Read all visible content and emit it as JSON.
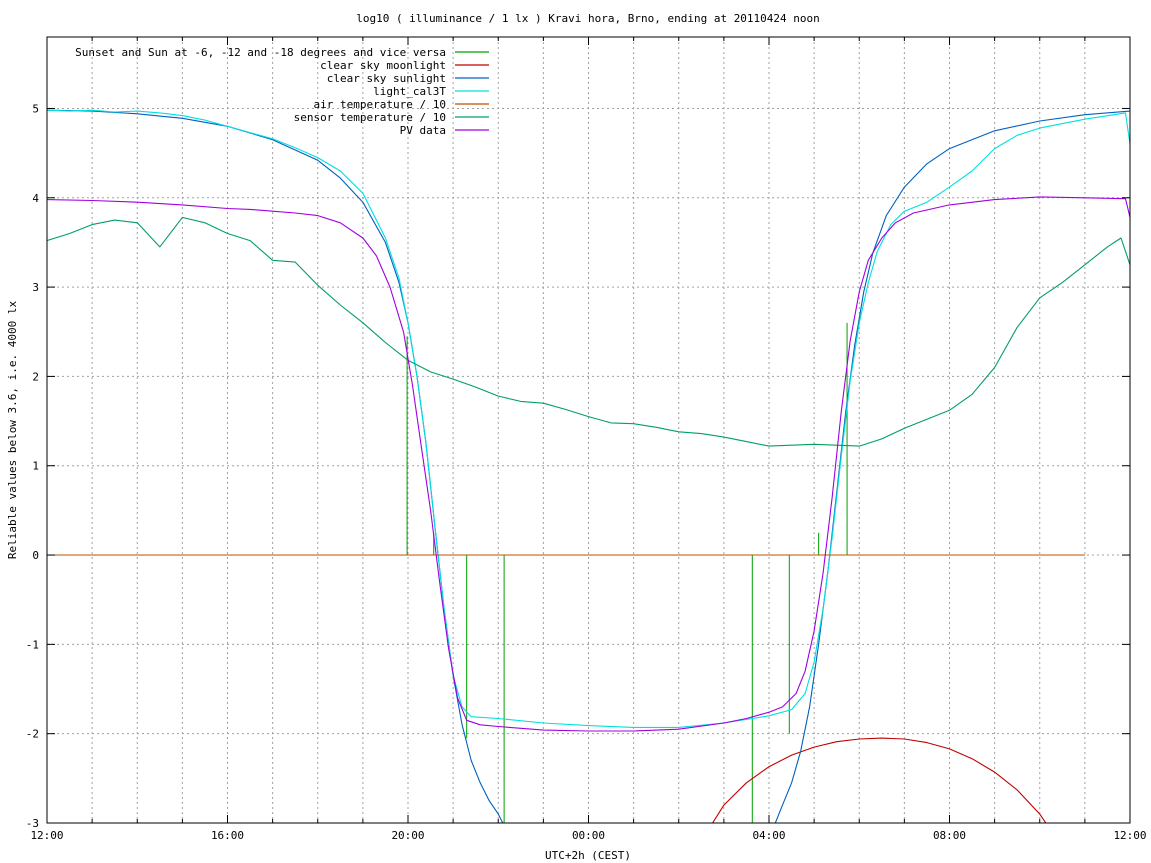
{
  "chart_data": {
    "type": "line",
    "title": "log10 ( illuminance / 1 lx ) Kravi hora, Brno, ending at 20110424 noon",
    "xlabel": "UTC+2h (CEST)",
    "ylabel": "Reliable values below 3.6, i.e. 4000 lx",
    "xlim": [
      12,
      36
    ],
    "ylim": [
      -3,
      5.8
    ],
    "x_ticks": [
      {
        "x": 12,
        "label": "12:00"
      },
      {
        "x": 16,
        "label": "16:00"
      },
      {
        "x": 20,
        "label": "20:00"
      },
      {
        "x": 24,
        "label": "00:00"
      },
      {
        "x": 28,
        "label": "04:00"
      },
      {
        "x": 32,
        "label": "08:00"
      },
      {
        "x": 36,
        "label": "12:00"
      }
    ],
    "y_ticks": [
      {
        "y": -3,
        "label": "-3"
      },
      {
        "y": -2,
        "label": "-2"
      },
      {
        "y": -1,
        "label": "-1"
      },
      {
        "y": 0,
        "label": "0"
      },
      {
        "y": 1,
        "label": "1"
      },
      {
        "y": 2,
        "label": "2"
      },
      {
        "y": 3,
        "label": "3"
      },
      {
        "y": 4,
        "label": "4"
      },
      {
        "y": 5,
        "label": "5"
      }
    ],
    "grid": true,
    "legend_position": "top-left",
    "series": [
      {
        "name": "Sunset and Sun at -6, -12 and -18 degrees and vice versa",
        "color": "#00a000",
        "kind": "impulses",
        "values": [
          {
            "x": 19.98,
            "y": 2.45
          },
          {
            "x": 20.57,
            "y": 0.25
          },
          {
            "x": 21.3,
            "y": -2.05
          },
          {
            "x": 22.13,
            "y": -3
          },
          {
            "x": 27.63,
            "y": -3
          },
          {
            "x": 28.45,
            "y": -2.0
          },
          {
            "x": 29.1,
            "y": 0.25
          },
          {
            "x": 29.73,
            "y": 2.6
          }
        ]
      },
      {
        "name": "clear sky moonlight",
        "color": "#c00000",
        "kind": "line",
        "values": [
          [
            26.5,
            -3.2
          ],
          [
            27.0,
            -2.8
          ],
          [
            27.5,
            -2.55
          ],
          [
            28.0,
            -2.37
          ],
          [
            28.5,
            -2.24
          ],
          [
            29.0,
            -2.15
          ],
          [
            29.5,
            -2.09
          ],
          [
            30.0,
            -2.06
          ],
          [
            30.5,
            -2.05
          ],
          [
            31.0,
            -2.06
          ],
          [
            31.5,
            -2.1
          ],
          [
            32.0,
            -2.17
          ],
          [
            32.5,
            -2.28
          ],
          [
            33.0,
            -2.43
          ],
          [
            33.5,
            -2.63
          ],
          [
            34.0,
            -2.9
          ],
          [
            34.2,
            -3.05
          ]
        ]
      },
      {
        "name": "clear sky sunlight",
        "color": "#0060c0",
        "kind": "line",
        "values": [
          [
            12.0,
            4.98
          ],
          [
            13.0,
            4.97
          ],
          [
            14.0,
            4.94
          ],
          [
            15.0,
            4.89
          ],
          [
            16.0,
            4.8
          ],
          [
            17.0,
            4.65
          ],
          [
            18.0,
            4.42
          ],
          [
            18.5,
            4.22
          ],
          [
            19.0,
            3.95
          ],
          [
            19.5,
            3.5
          ],
          [
            19.8,
            3.05
          ],
          [
            20.0,
            2.6
          ],
          [
            20.2,
            2.0
          ],
          [
            20.4,
            1.25
          ],
          [
            20.6,
            0.3
          ],
          [
            20.8,
            -0.6
          ],
          [
            21.0,
            -1.35
          ],
          [
            21.2,
            -1.9
          ],
          [
            21.4,
            -2.3
          ],
          [
            21.6,
            -2.55
          ],
          [
            21.8,
            -2.75
          ],
          [
            22.0,
            -2.9
          ],
          [
            22.15,
            -3.05
          ],
          [
            null,
            null
          ],
          [
            28.1,
            -3.05
          ],
          [
            28.3,
            -2.8
          ],
          [
            28.5,
            -2.55
          ],
          [
            28.7,
            -2.2
          ],
          [
            28.9,
            -1.7
          ],
          [
            29.1,
            -1.0
          ],
          [
            29.3,
            -0.2
          ],
          [
            29.5,
            0.7
          ],
          [
            29.7,
            1.6
          ],
          [
            29.9,
            2.35
          ],
          [
            30.1,
            2.95
          ],
          [
            30.3,
            3.38
          ],
          [
            30.6,
            3.8
          ],
          [
            31.0,
            4.12
          ],
          [
            31.5,
            4.38
          ],
          [
            32.0,
            4.55
          ],
          [
            33.0,
            4.75
          ],
          [
            34.0,
            4.86
          ],
          [
            35.0,
            4.93
          ],
          [
            36.0,
            4.97
          ]
        ]
      },
      {
        "name": "light_cal3T",
        "color": "#00e0e0",
        "kind": "line",
        "values": [
          [
            12.0,
            4.98
          ],
          [
            12.5,
            4.97
          ],
          [
            13.0,
            4.98
          ],
          [
            13.5,
            4.96
          ],
          [
            14.0,
            4.97
          ],
          [
            14.5,
            4.95
          ],
          [
            15.0,
            4.92
          ],
          [
            15.5,
            4.87
          ],
          [
            16.0,
            4.8
          ],
          [
            16.5,
            4.73
          ],
          [
            17.0,
            4.66
          ],
          [
            17.5,
            4.56
          ],
          [
            18.0,
            4.45
          ],
          [
            18.5,
            4.3
          ],
          [
            19.0,
            4.05
          ],
          [
            19.5,
            3.55
          ],
          [
            19.8,
            3.1
          ],
          [
            20.0,
            2.6
          ],
          [
            20.2,
            2.0
          ],
          [
            20.4,
            1.25
          ],
          [
            20.6,
            0.3
          ],
          [
            20.8,
            -0.6
          ],
          [
            21.0,
            -1.35
          ],
          [
            21.2,
            -1.7
          ],
          [
            21.4,
            -1.81
          ],
          [
            22.0,
            -1.83
          ],
          [
            23.0,
            -1.88
          ],
          [
            24.0,
            -1.91
          ],
          [
            25.0,
            -1.93
          ],
          [
            26.0,
            -1.93
          ],
          [
            27.0,
            -1.88
          ],
          [
            28.0,
            -1.8
          ],
          [
            28.5,
            -1.73
          ],
          [
            28.8,
            -1.55
          ],
          [
            29.0,
            -1.2
          ],
          [
            29.2,
            -0.6
          ],
          [
            29.4,
            0.2
          ],
          [
            29.6,
            1.1
          ],
          [
            29.8,
            1.95
          ],
          [
            30.0,
            2.6
          ],
          [
            30.2,
            3.05
          ],
          [
            30.4,
            3.4
          ],
          [
            30.7,
            3.7
          ],
          [
            31.0,
            3.85
          ],
          [
            31.5,
            3.95
          ],
          [
            32.0,
            4.12
          ],
          [
            32.5,
            4.3
          ],
          [
            33.0,
            4.55
          ],
          [
            33.5,
            4.7
          ],
          [
            34.0,
            4.78
          ],
          [
            35.0,
            4.88
          ],
          [
            35.9,
            4.95
          ],
          [
            36.0,
            4.6
          ]
        ]
      },
      {
        "name": "air temperature / 10",
        "color": "#c05000",
        "kind": "line",
        "values": [
          [
            12.0,
            0
          ],
          [
            35.0,
            0
          ]
        ]
      },
      {
        "name": "sensor temperature / 10",
        "color": "#00a060",
        "kind": "line",
        "values": [
          [
            12.0,
            3.52
          ],
          [
            12.5,
            3.6
          ],
          [
            13.0,
            3.7
          ],
          [
            13.5,
            3.75
          ],
          [
            14.0,
            3.72
          ],
          [
            14.5,
            3.45
          ],
          [
            15.0,
            3.78
          ],
          [
            15.5,
            3.72
          ],
          [
            16.0,
            3.6
          ],
          [
            16.5,
            3.52
          ],
          [
            17.0,
            3.3
          ],
          [
            17.5,
            3.28
          ],
          [
            18.0,
            3.02
          ],
          [
            18.5,
            2.8
          ],
          [
            19.0,
            2.6
          ],
          [
            19.5,
            2.38
          ],
          [
            20.0,
            2.18
          ],
          [
            20.5,
            2.05
          ],
          [
            21.0,
            1.97
          ],
          [
            21.5,
            1.88
          ],
          [
            22.0,
            1.78
          ],
          [
            22.5,
            1.72
          ],
          [
            23.0,
            1.7
          ],
          [
            23.5,
            1.63
          ],
          [
            24.0,
            1.55
          ],
          [
            24.5,
            1.48
          ],
          [
            25.0,
            1.47
          ],
          [
            25.5,
            1.43
          ],
          [
            26.0,
            1.38
          ],
          [
            26.5,
            1.36
          ],
          [
            27.0,
            1.32
          ],
          [
            27.5,
            1.27
          ],
          [
            28.0,
            1.22
          ],
          [
            28.5,
            1.23
          ],
          [
            29.0,
            1.24
          ],
          [
            29.5,
            1.23
          ],
          [
            30.0,
            1.22
          ],
          [
            30.5,
            1.3
          ],
          [
            31.0,
            1.42
          ],
          [
            31.5,
            1.52
          ],
          [
            32.0,
            1.62
          ],
          [
            32.5,
            1.8
          ],
          [
            33.0,
            2.1
          ],
          [
            33.5,
            2.55
          ],
          [
            34.0,
            2.88
          ],
          [
            34.5,
            3.05
          ],
          [
            35.0,
            3.25
          ],
          [
            35.5,
            3.45
          ],
          [
            35.8,
            3.55
          ],
          [
            36.0,
            3.25
          ]
        ]
      },
      {
        "name": "PV data",
        "color": "#a000e0",
        "kind": "line",
        "values": [
          [
            12.0,
            3.98
          ],
          [
            13.0,
            3.97
          ],
          [
            14.0,
            3.95
          ],
          [
            15.0,
            3.92
          ],
          [
            16.0,
            3.88
          ],
          [
            16.5,
            3.87
          ],
          [
            17.0,
            3.85
          ],
          [
            17.5,
            3.83
          ],
          [
            18.0,
            3.8
          ],
          [
            18.5,
            3.72
          ],
          [
            19.0,
            3.55
          ],
          [
            19.3,
            3.35
          ],
          [
            19.6,
            3.0
          ],
          [
            19.9,
            2.5
          ],
          [
            20.1,
            1.9
          ],
          [
            20.3,
            1.2
          ],
          [
            20.5,
            0.5
          ],
          [
            20.7,
            -0.3
          ],
          [
            20.9,
            -1.05
          ],
          [
            21.1,
            -1.6
          ],
          [
            21.3,
            -1.85
          ],
          [
            21.6,
            -1.9
          ],
          [
            22.0,
            -1.92
          ],
          [
            23.0,
            -1.96
          ],
          [
            24.0,
            -1.97
          ],
          [
            25.0,
            -1.97
          ],
          [
            26.0,
            -1.95
          ],
          [
            27.0,
            -1.88
          ],
          [
            27.5,
            -1.83
          ],
          [
            28.0,
            -1.76
          ],
          [
            28.3,
            -1.7
          ],
          [
            28.6,
            -1.55
          ],
          [
            28.8,
            -1.3
          ],
          [
            29.0,
            -0.85
          ],
          [
            29.2,
            -0.2
          ],
          [
            29.4,
            0.65
          ],
          [
            29.6,
            1.6
          ],
          [
            29.8,
            2.4
          ],
          [
            30.0,
            2.95
          ],
          [
            30.2,
            3.3
          ],
          [
            30.5,
            3.55
          ],
          [
            30.8,
            3.72
          ],
          [
            31.2,
            3.83
          ],
          [
            32.0,
            3.92
          ],
          [
            33.0,
            3.98
          ],
          [
            34.0,
            4.01
          ],
          [
            35.0,
            4.0
          ],
          [
            35.9,
            3.99
          ],
          [
            36.0,
            3.78
          ]
        ]
      }
    ]
  }
}
